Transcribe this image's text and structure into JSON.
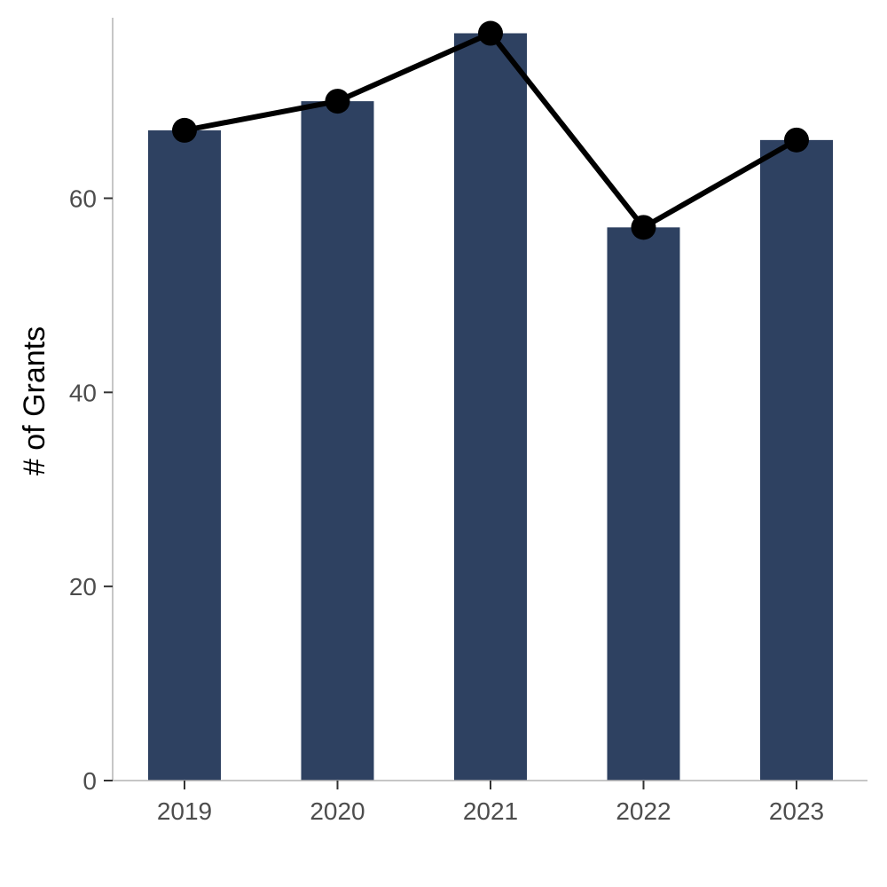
{
  "chart_data": {
    "type": "bar",
    "categories": [
      "2019",
      "2020",
      "2021",
      "2022",
      "2023"
    ],
    "values": [
      67,
      70,
      77,
      57,
      66
    ],
    "line_values": [
      67,
      70,
      77,
      57,
      66
    ],
    "xlabel": "",
    "ylabel": "# of Grants",
    "ylim": [
      0,
      78.6
    ],
    "yticks": [
      0,
      20,
      40,
      60
    ],
    "grid": false,
    "colors": {
      "bar": "#2e4161",
      "line": "#000000",
      "point": "#000000",
      "axis": "#b3b3b3"
    }
  }
}
